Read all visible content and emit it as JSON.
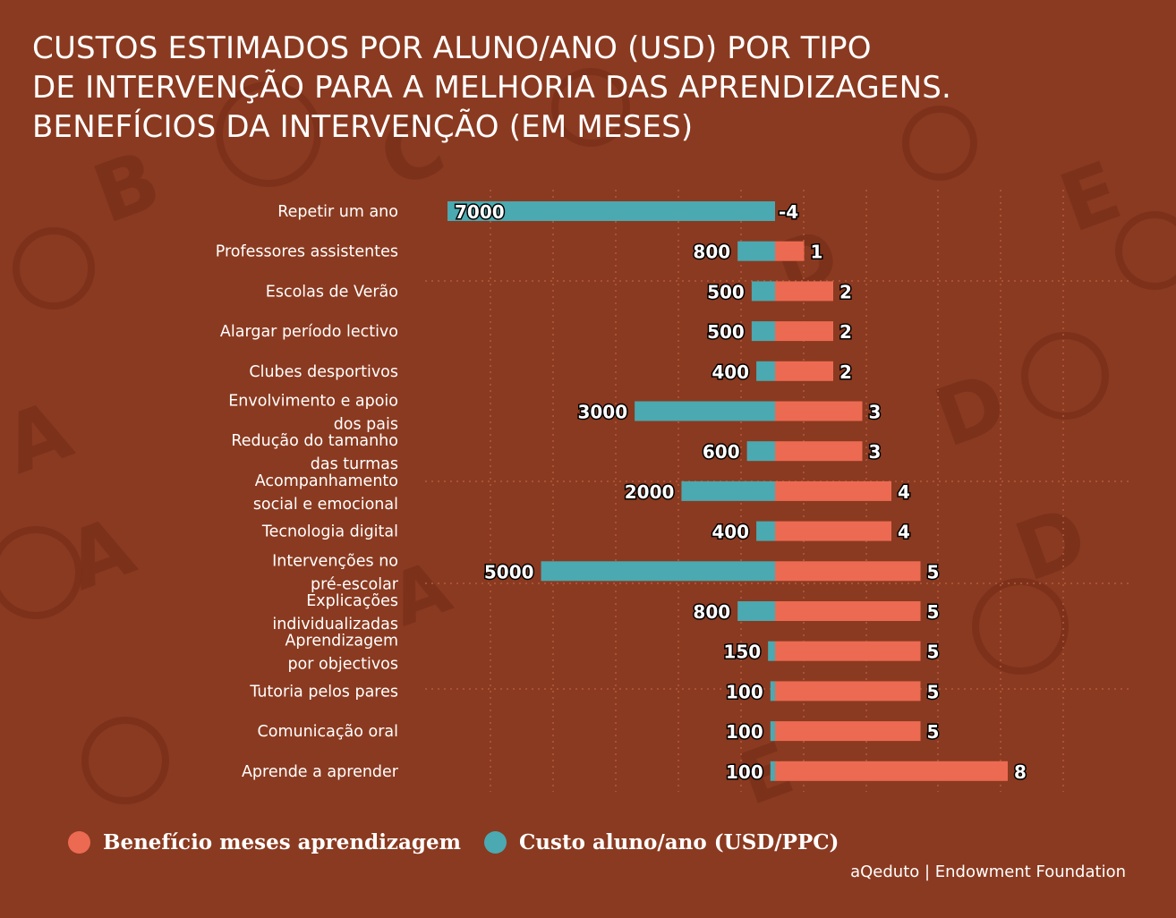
{
  "title_lines": [
    "CUSTOS ESTIMADOS POR ALUNO/ANO (USD) POR TIPO",
    "DE INTERVENÇÃO PARA A MELHORIA DAS APRENDIZAGENS.",
    "BENEFÍCIOS DA INTERVENÇÃO (EM MESES)"
  ],
  "colors": {
    "background": "#8a3a20",
    "benefit": "#ec6a52",
    "cost": "#4aa9b1",
    "text": "#ffffff"
  },
  "legend": {
    "benefit_label": "Benefício meses aprendizagem",
    "cost_label": "Custo aluno/ano (USD/PPC)"
  },
  "source": "aQeduto | Endowment Foundation",
  "chart_data": {
    "type": "bar",
    "orientation": "horizontal-diverging",
    "categories": [
      [
        "Repetir um ano"
      ],
      [
        "Professores assistentes"
      ],
      [
        "Escolas de Verão"
      ],
      [
        "Alargar período lectivo"
      ],
      [
        "Clubes desportivos"
      ],
      [
        "Envolvimento e apoio",
        "dos pais"
      ],
      [
        "Redução do tamanho",
        "das turmas"
      ],
      [
        "Acompanhamento",
        "social e emocional"
      ],
      [
        "Tecnologia digital"
      ],
      [
        "Intervenções no",
        "pré-escolar"
      ],
      [
        "Explicações",
        "individualizadas"
      ],
      [
        "Aprendizagem",
        "por objectivos"
      ],
      [
        "Tutoria pelos pares"
      ],
      [
        "Comunicação oral"
      ],
      [
        "Aprende a aprender"
      ]
    ],
    "series": [
      {
        "name": "Custo aluno/ano (USD/PPC)",
        "values": [
          7000,
          800,
          500,
          500,
          400,
          3000,
          600,
          2000,
          400,
          5000,
          800,
          150,
          100,
          100,
          100
        ]
      },
      {
        "name": "Benefício meses aprendizagem",
        "values": [
          -4,
          1,
          2,
          2,
          2,
          3,
          3,
          4,
          4,
          5,
          5,
          5,
          5,
          5,
          8
        ]
      }
    ],
    "cost_range": [
      0,
      7000
    ],
    "benefit_range": [
      0,
      8
    ],
    "legend_position": "bottom-left",
    "grid": true
  }
}
